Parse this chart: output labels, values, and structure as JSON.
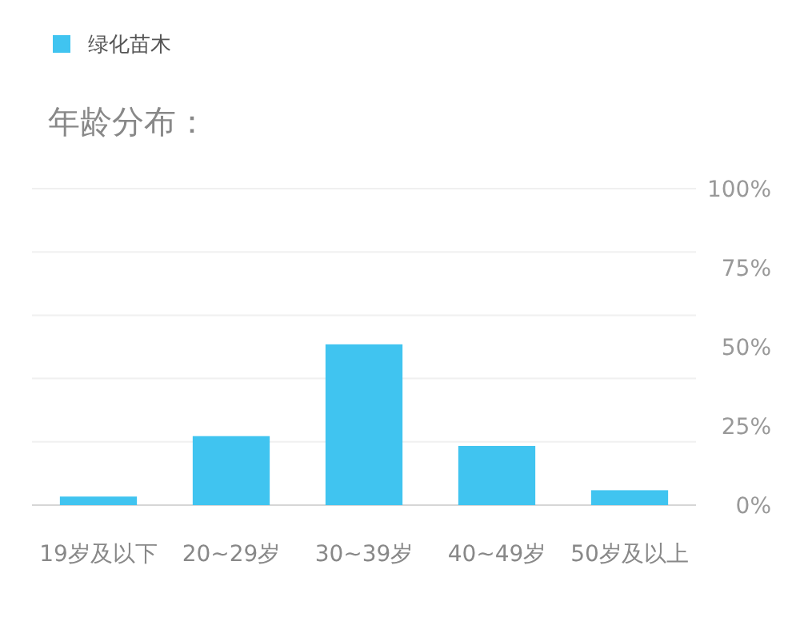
{
  "chart_data": {
    "type": "bar",
    "title": "年龄分布：",
    "categories": [
      "19岁及以下",
      "20~29岁",
      "30~39岁",
      "40~49岁",
      "50岁及以上"
    ],
    "series": [
      {
        "name": "绿化苗木",
        "color": "#40c4f0",
        "values": [
          2.7,
          21.8,
          50.8,
          18.7,
          4.7
        ]
      }
    ],
    "ylim": [
      0,
      100
    ],
    "yticks": [
      {
        "value": 0,
        "label": "0%"
      },
      {
        "value": 20,
        "label": null
      },
      {
        "value": 25,
        "label": "25%"
      },
      {
        "value": 40,
        "label": null
      },
      {
        "value": 50,
        "label": "50%"
      },
      {
        "value": 60,
        "label": null
      },
      {
        "value": 75,
        "label": "75%"
      },
      {
        "value": 80,
        "label": null
      },
      {
        "value": 100,
        "label": "100%"
      }
    ],
    "grid": "y",
    "legend": "top left"
  }
}
